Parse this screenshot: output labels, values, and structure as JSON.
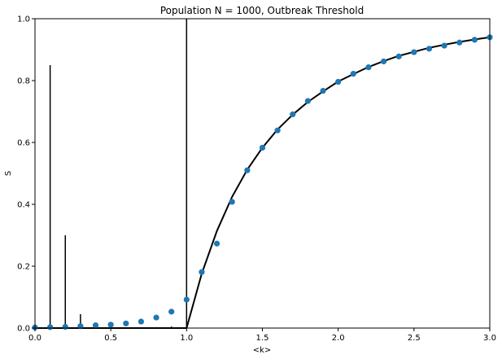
{
  "chart_data": {
    "type": "scatter",
    "title": "Population N = 1000, Outbreak Threshold",
    "xlabel": "<k>",
    "ylabel": "S",
    "xlim": [
      0.0,
      3.0
    ],
    "ylim": [
      0.0,
      1.0
    ],
    "grid": false,
    "legend": "none",
    "x_ticks": [
      "0.0",
      "0.5",
      "1.0",
      "1.5",
      "2.0",
      "2.5",
      "3.0"
    ],
    "y_ticks": [
      "0.0",
      "0.2",
      "0.4",
      "0.6",
      "0.8",
      "1.0"
    ],
    "series": [
      {
        "kind": "scatter",
        "color": "#1f77b4",
        "x": [
          0.0,
          0.1,
          0.2,
          0.3,
          0.4,
          0.5,
          0.6,
          0.7,
          0.8,
          0.9,
          1.0,
          1.1,
          1.2,
          1.3,
          1.4,
          1.5,
          1.6,
          1.7,
          1.8,
          1.9,
          2.0,
          2.1,
          2.2,
          2.3,
          2.4,
          2.5,
          2.6,
          2.7,
          2.8,
          2.9,
          3.0
        ],
        "y": [
          0.002,
          0.003,
          0.004,
          0.006,
          0.009,
          0.011,
          0.015,
          0.021,
          0.034,
          0.053,
          0.092,
          0.181,
          0.273,
          0.408,
          0.51,
          0.583,
          0.639,
          0.691,
          0.734,
          0.767,
          0.796,
          0.822,
          0.843,
          0.862,
          0.878,
          0.892,
          0.903,
          0.913,
          0.923,
          0.932,
          0.94
        ]
      },
      {
        "kind": "line",
        "color": "#000000",
        "x": [
          0.0,
          0.1,
          0.2,
          0.3,
          0.4,
          0.5,
          0.6,
          0.7,
          0.8,
          0.9,
          1.0,
          1.1,
          1.2,
          1.3,
          1.4,
          1.5,
          1.6,
          1.7,
          1.8,
          1.9,
          2.0,
          2.1,
          2.2,
          2.3,
          2.4,
          2.5,
          2.6,
          2.7,
          2.8,
          2.9,
          3.0
        ],
        "y": [
          0.0,
          0.0,
          0.0,
          0.0,
          0.0,
          0.0,
          0.0,
          0.0,
          0.0,
          0.0,
          0.0,
          0.176,
          0.314,
          0.424,
          0.512,
          0.583,
          0.642,
          0.69,
          0.731,
          0.765,
          0.797,
          0.821,
          0.844,
          0.863,
          0.88,
          0.893,
          0.906,
          0.916,
          0.925,
          0.933,
          0.94
        ]
      },
      {
        "kind": "vlines",
        "color": "#000000",
        "x": [
          0.1,
          0.2,
          0.3,
          0.9,
          1.0
        ],
        "y": [
          0.85,
          0.3,
          0.045,
          0.005,
          1.0
        ]
      }
    ]
  }
}
